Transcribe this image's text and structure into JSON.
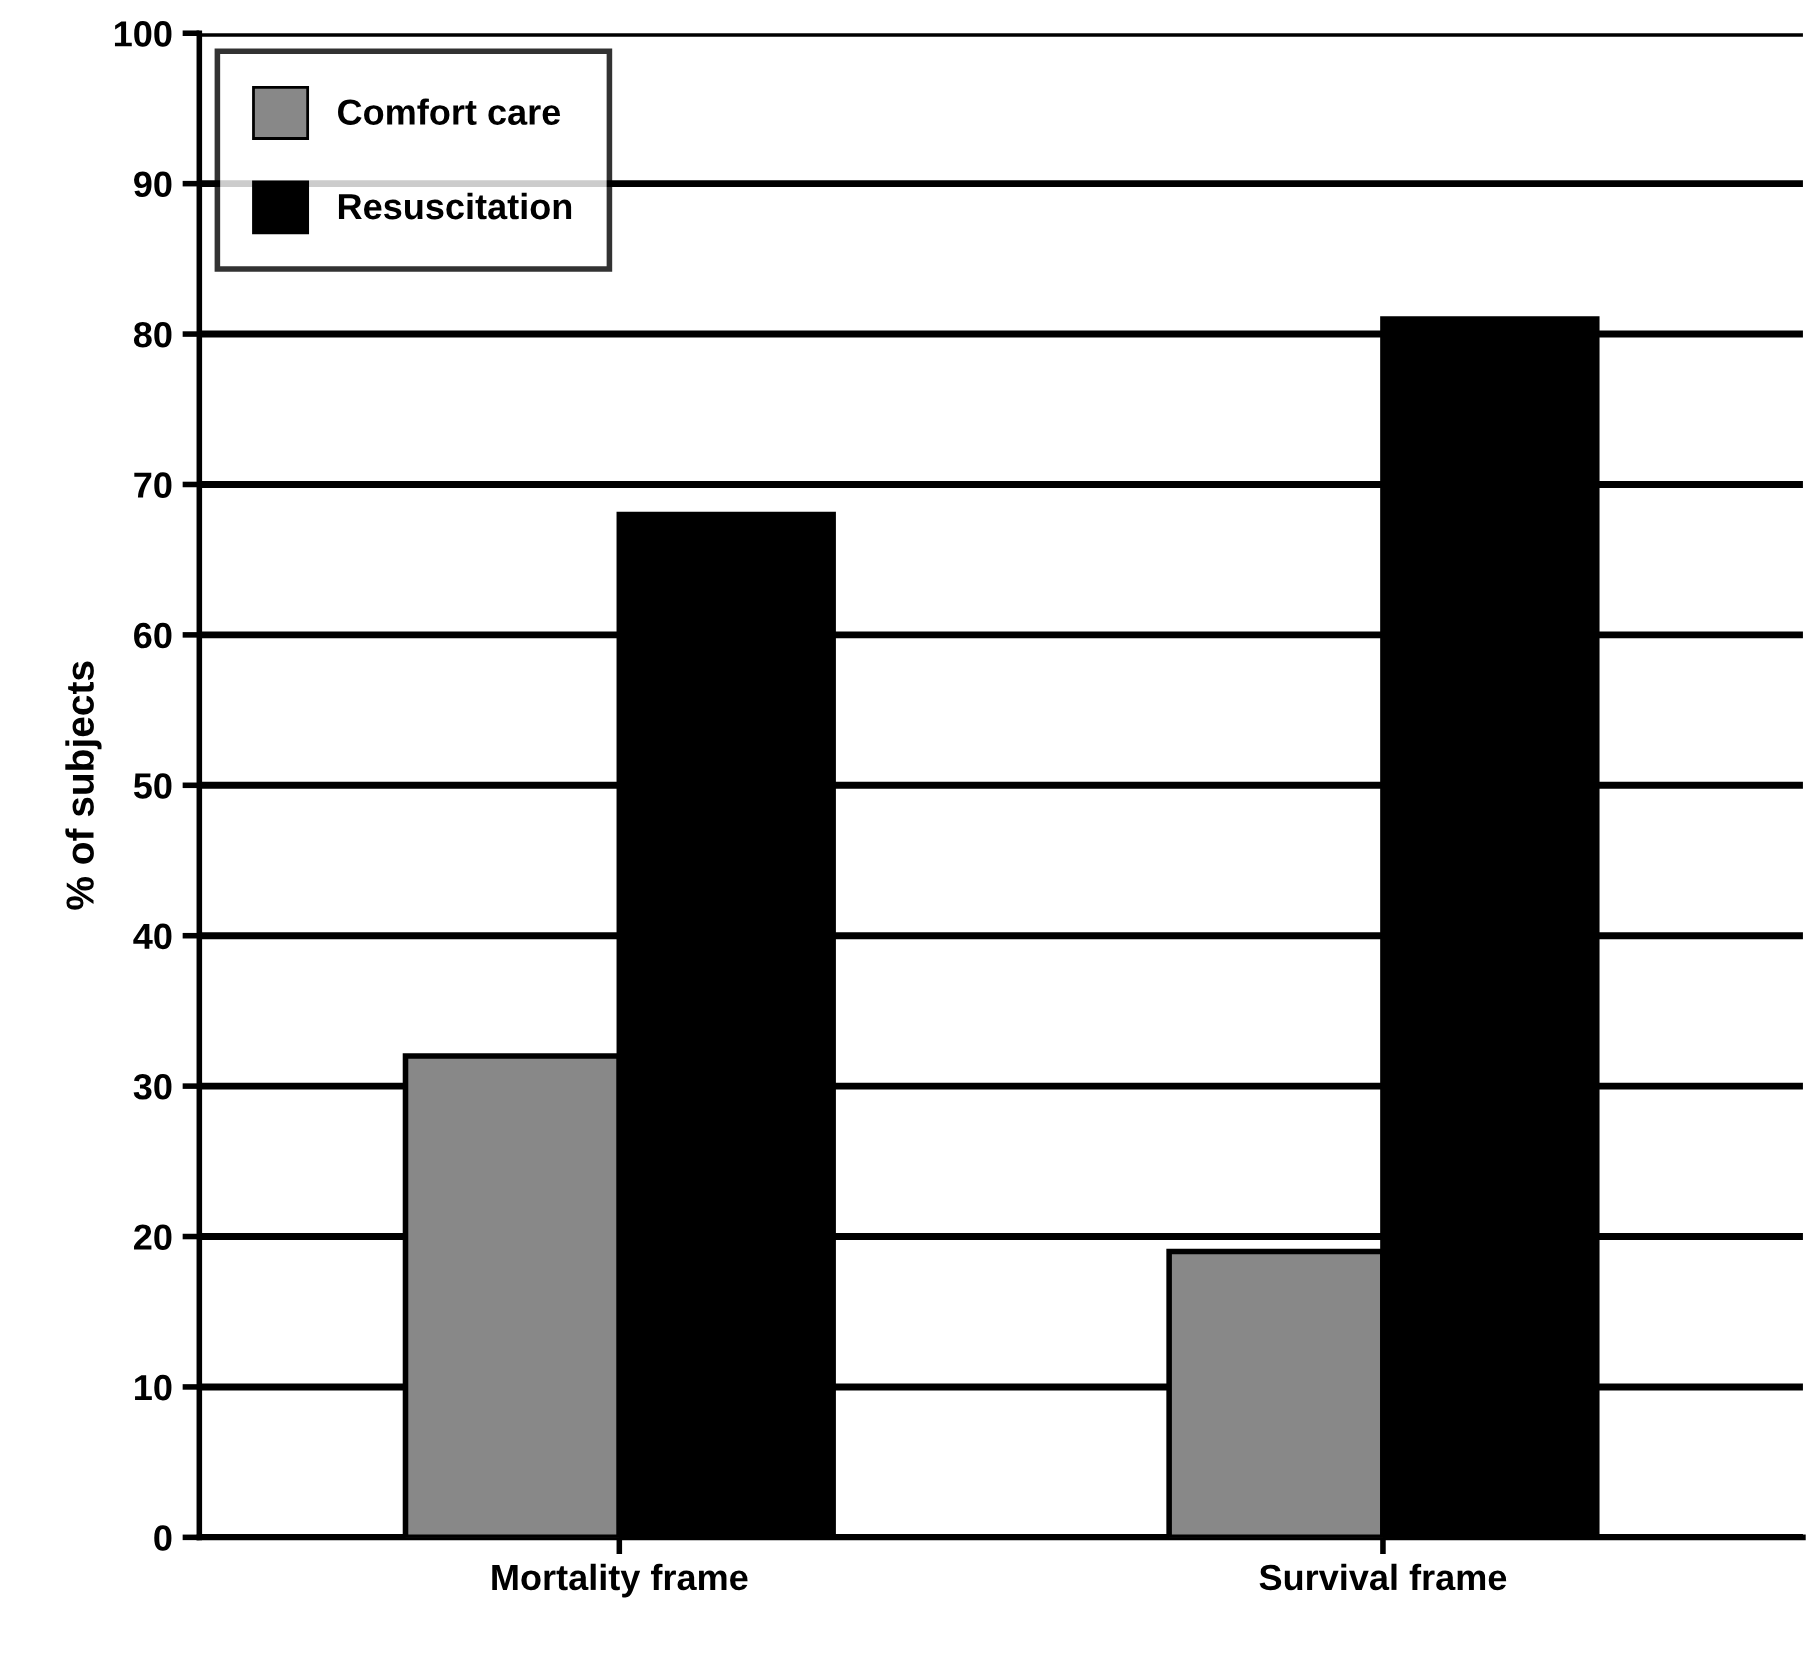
{
  "chart_data": {
    "type": "bar",
    "ylabel": "% of subjects",
    "categories": [
      "Mortality frame",
      "Survival frame"
    ],
    "series": [
      {
        "name": "Comfort care",
        "color": "#888888",
        "values": [
          32,
          19
        ]
      },
      {
        "name": "Resuscitation",
        "color": "#000000",
        "values": [
          68,
          81
        ]
      }
    ],
    "ylim": [
      0,
      100
    ],
    "yticks": [
      0,
      10,
      20,
      30,
      40,
      50,
      60,
      70,
      80,
      90,
      100
    ],
    "grid": "y",
    "legend": "top left"
  }
}
